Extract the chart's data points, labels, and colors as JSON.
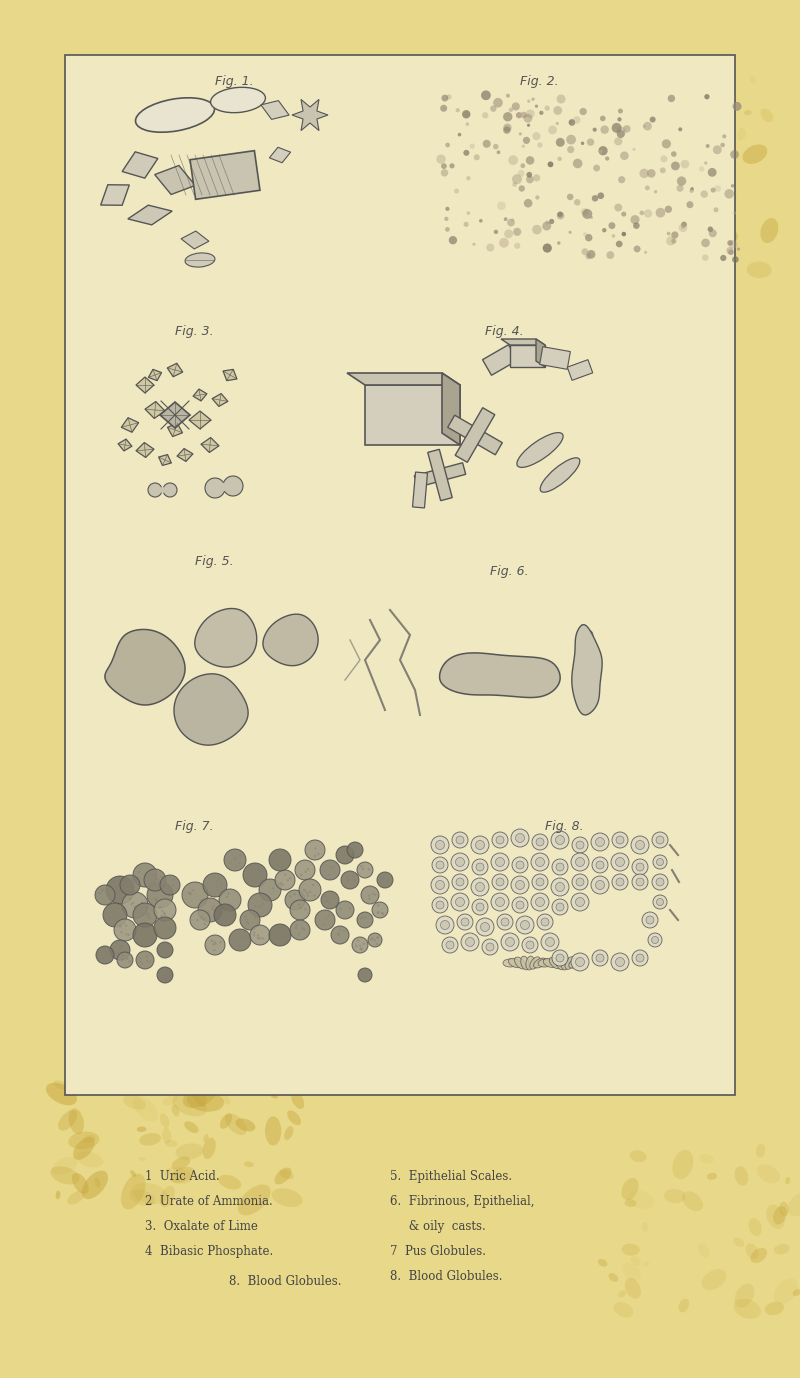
{
  "bg_color": "#e8d98a",
  "paper_color": "#f0e8c0",
  "border_color": "#555555",
  "figure_label_color": "#555555",
  "text_color": "#444444",
  "drawing_color": "#555555",
  "stain_color_1": "#c8a840",
  "stain_color_2": "#b89030",
  "legend_items_left": [
    "1  Uric Acid.",
    "2  Urate of Ammonia.",
    "3.  Oxalate of Lime",
    "4  Bibasic Phosphate."
  ],
  "legend_items_right": [
    "5.  Epithelial Scales.",
    "6.  Fibrinous, Epithelial,",
    "     & oily  casts.",
    "7  Pus Globules.",
    "8.  Blood Globules."
  ],
  "fig_labels": [
    "Fig. 1.",
    "Fig. 2.",
    "Fig. 3.",
    "Fig. 4.",
    "Fig. 5.",
    "Fig. 6.",
    "Fig. 7.",
    "Fig. 8."
  ]
}
